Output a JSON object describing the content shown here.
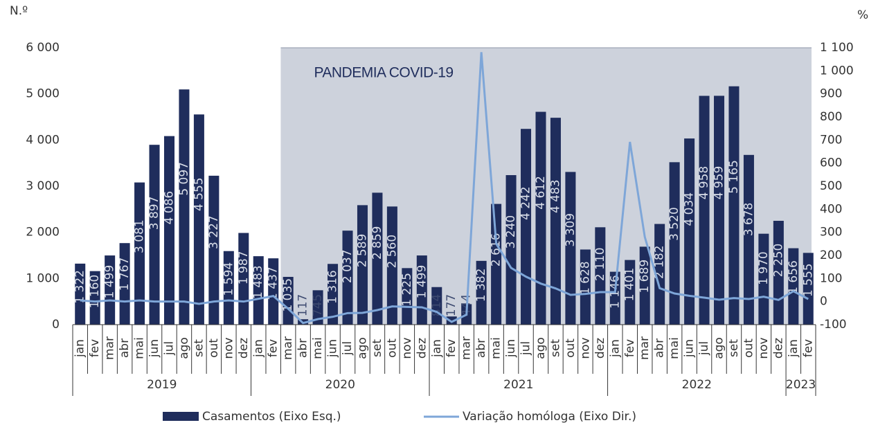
{
  "chart_data": {
    "type": "bar-line",
    "left_axis_label": "N.º",
    "right_axis_label": "%",
    "annotation": "PANDEMIA COVID-19",
    "shade_from": {
      "year": "2020",
      "month": "mar"
    },
    "categories": [
      "jan",
      "fev",
      "mar",
      "abr",
      "mai",
      "jun",
      "jul",
      "ago",
      "set",
      "out",
      "nov",
      "dez",
      "jan",
      "fev",
      "mar",
      "abr",
      "mai",
      "jun",
      "jul",
      "ago",
      "set",
      "out",
      "nov",
      "dez",
      "jan",
      "fev",
      "mar",
      "abr",
      "mai",
      "jun",
      "jul",
      "ago",
      "set",
      "out",
      "nov",
      "dez",
      "jan",
      "fev",
      "mar",
      "abr",
      "mai",
      "jun",
      "jul",
      "ago",
      "set",
      "out",
      "nov",
      "dez",
      "jan",
      "fev"
    ],
    "years": [
      "2019",
      "2020",
      "2021",
      "2022",
      "2023"
    ],
    "series": [
      {
        "name": "Casamentos (Eixo Esq.)",
        "kind": "bar",
        "color": "#1f2d5c",
        "values": [
          1322,
          1160,
          1499,
          1767,
          3081,
          3897,
          4086,
          5097,
          4555,
          3227,
          1594,
          1987,
          1483,
          1437,
          1035,
          117,
          745,
          1316,
          2037,
          2589,
          2859,
          2560,
          1225,
          1499,
          814,
          177,
          444,
          1382,
          2616,
          3240,
          4242,
          4612,
          4483,
          3309,
          1628,
          2110,
          1146,
          1401,
          1689,
          2182,
          3520,
          4034,
          4958,
          4959,
          5165,
          3678,
          1970,
          2250,
          1656,
          1555
        ],
        "value_labels": [
          "1 322",
          "1 160",
          "1 499",
          "1 767",
          "3 081",
          "3 897",
          "4 086",
          "5 097",
          "4 555",
          "3 227",
          "1 594",
          "1 987",
          "1 483",
          "1 437",
          "1 035",
          "117",
          "745",
          "1 316",
          "2 037",
          "2 589",
          "2 859",
          "2 560",
          "1 225",
          "1 499",
          "814",
          "177",
          "444",
          "1 382",
          "2 616",
          "3 240",
          "4 242",
          "4 612",
          "4 483",
          "3 309",
          "1 628",
          "2 110",
          "1 146",
          "1 401",
          "1 689",
          "2 182",
          "3 520",
          "4 034",
          "4 958",
          "4 959",
          "5 165",
          "3 678",
          "1 970",
          "2 250",
          "1 656",
          "1 555"
        ]
      },
      {
        "name": "Variação homóloga (Eixo Dir.)",
        "kind": "line",
        "axis": "y2",
        "color": "#7ea6d8",
        "values": [
          5,
          0,
          5,
          0,
          5,
          0,
          0,
          0,
          -10,
          0,
          5,
          0,
          12,
          24,
          -31,
          -93,
          -76,
          -66,
          -50,
          -49,
          -37,
          -21,
          -23,
          -25,
          -45,
          -88,
          -57,
          1081,
          251,
          146,
          108,
          78,
          57,
          29,
          33,
          41,
          41,
          692,
          280,
          58,
          35,
          25,
          17,
          8,
          15,
          11,
          21,
          7,
          45,
          11
        ]
      }
    ],
    "ylim": [
      0,
      6000
    ],
    "yticks": [
      0,
      {
        "value": 1000,
        "label": "1 000"
      },
      {
        "value": 2000,
        "label": "2 000"
      },
      {
        "value": 3000,
        "label": "3 000"
      },
      {
        "value": 4000,
        "label": "4 000"
      },
      {
        "value": 5000,
        "label": "5 000"
      },
      {
        "value": 6000,
        "label": "6 000"
      }
    ],
    "y2lim": [
      -100,
      1100
    ],
    "y2ticks": [
      -100,
      0,
      100,
      200,
      300,
      400,
      500,
      600,
      700,
      800,
      900,
      {
        "value": 1000,
        "label": "1 000"
      },
      {
        "value": 1100,
        "label": "1 100"
      }
    ]
  }
}
